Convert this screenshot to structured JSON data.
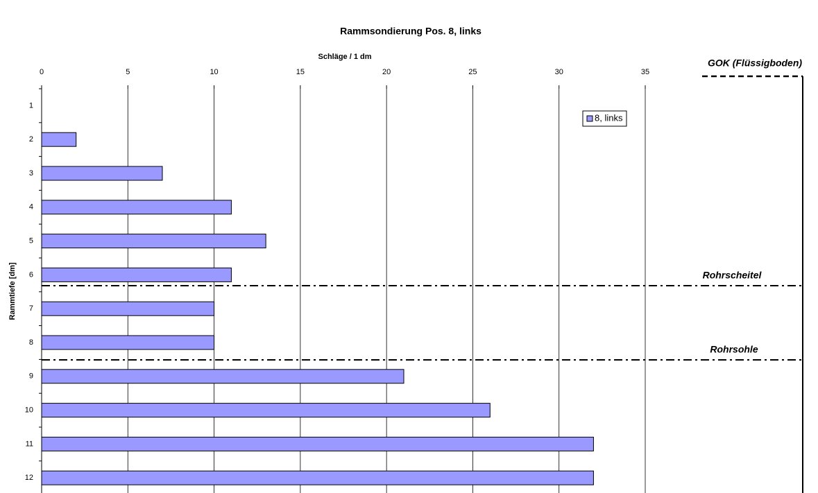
{
  "chart_data": {
    "type": "barh",
    "title": "Rammsondierung Pos. 8, links",
    "x_label": "Schläge / 1 dm",
    "y_label": "Rammtiefe [dm]",
    "categories": [
      "1",
      "2",
      "3",
      "4",
      "5",
      "6",
      "7",
      "8",
      "9",
      "10",
      "11",
      "12"
    ],
    "series": [
      {
        "name": "8, links",
        "color": "#9999ff",
        "values": [
          0,
          2,
          7,
          11,
          13,
          11,
          10,
          10,
          21,
          26,
          32,
          32
        ]
      }
    ],
    "xlim": [
      0,
      35
    ],
    "xticks": [
      0,
      5,
      10,
      15,
      20,
      25,
      30,
      35
    ],
    "grid": true,
    "legend": "upper right",
    "annotations": [
      "GOK (Flüssigboden)",
      "Rohrscheitel",
      "Rohrsohle"
    ]
  }
}
